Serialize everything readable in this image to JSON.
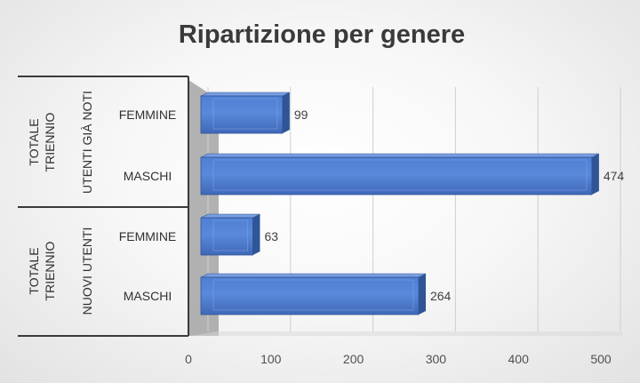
{
  "chart_data": {
    "type": "bar",
    "orientation": "horizontal",
    "title": "Ripartizione per genere",
    "xlim": [
      0,
      500
    ],
    "xticks": [
      0,
      100,
      200,
      300,
      400,
      500
    ],
    "grid": true,
    "legend": "none",
    "bar_color": "#4472c4",
    "groups": [
      {
        "labels": [
          "TOTALE TRIENNIO",
          "UTENTI GIÀ NOTI"
        ],
        "categories": [
          "FEMMINE",
          "MASCHI"
        ],
        "values": [
          99,
          474
        ]
      },
      {
        "labels": [
          "TOTALE TRIENNIO",
          "NUOVI UTENTI"
        ],
        "categories": [
          "FEMMINE",
          "MASCHI"
        ],
        "values": [
          63,
          264
        ]
      }
    ]
  }
}
